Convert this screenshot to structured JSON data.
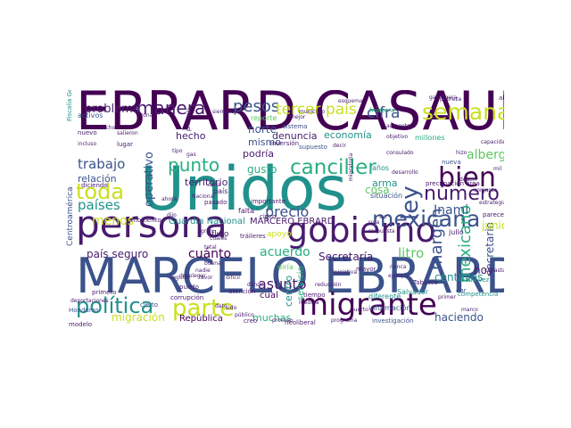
{
  "palette": {
    "dark": "#481b6d",
    "indigo": "#3b528b",
    "blue": "#2c728e",
    "teal": "#21918c",
    "green": "#28ae80",
    "lime": "#5ec962",
    "yellow": "#c8e020",
    "purple": "#440154"
  },
  "words": [
    {
      "id": "ebrard-casaubon",
      "text": "EBRARD CASAUBON",
      "color": "purple"
    },
    {
      "id": "unidos",
      "text": "Unidos",
      "color": "teal"
    },
    {
      "id": "marcelo-ebrard",
      "text": "MARCELO EBRARD",
      "color": "indigo"
    },
    {
      "id": "persona",
      "text": "persona",
      "color": "dark"
    },
    {
      "id": "gobierno",
      "text": "gobierno",
      "color": "dark"
    },
    {
      "id": "migrante",
      "text": "migrante",
      "color": "purple"
    },
    {
      "id": "canciller",
      "text": "canciller",
      "color": "green"
    },
    {
      "id": "bien",
      "text": "bien",
      "color": "purple"
    },
    {
      "id": "mexicana",
      "text": "mexicana",
      "color": "indigo"
    },
    {
      "id": "numero",
      "text": "número",
      "color": "dark"
    },
    {
      "id": "semana",
      "text": "semana",
      "color": "yellow"
    },
    {
      "id": "manera",
      "text": "manera",
      "color": "dark"
    },
    {
      "id": "pesos",
      "text": "pesos",
      "color": "indigo"
    },
    {
      "id": "tercer-pais",
      "text": "tercer país",
      "color": "yellow"
    },
    {
      "id": "cifra",
      "text": "cifra",
      "color": "indigo"
    },
    {
      "id": "punto",
      "text": "punto",
      "color": "green"
    },
    {
      "id": "toda",
      "text": "toda",
      "color": "yellow"
    },
    {
      "id": "politica",
      "text": "política",
      "color": "teal"
    },
    {
      "id": "parte",
      "text": "parte",
      "color": "yellow"
    },
    {
      "id": "problema",
      "text": "problema",
      "color": "dark"
    },
    {
      "id": "trabajo",
      "text": "trabajo",
      "color": "indigo"
    },
    {
      "id": "paises",
      "text": "países",
      "color": "teal"
    },
    {
      "id": "menos",
      "text": "menos",
      "color": "yellow"
    },
    {
      "id": "relacion",
      "text": "relación",
      "color": "indigo"
    },
    {
      "id": "operativo",
      "text": "operativo",
      "color": "indigo"
    },
    {
      "id": "territorio",
      "text": "territorio",
      "color": "dark"
    },
    {
      "id": "hecho",
      "text": "hecho",
      "color": "dark"
    },
    {
      "id": "norte",
      "text": "norte",
      "color": "indigo"
    },
    {
      "id": "mismo",
      "text": "mismo",
      "color": "indigo"
    },
    {
      "id": "podria",
      "text": "podría",
      "color": "dark"
    },
    {
      "id": "gusto",
      "text": "gusto",
      "color": "green"
    },
    {
      "id": "denuncia",
      "text": "denuncia",
      "color": "dark"
    },
    {
      "id": "economia",
      "text": "economía",
      "color": "teal"
    },
    {
      "id": "precio",
      "text": "precio",
      "color": "indigo"
    },
    {
      "id": "ley",
      "text": "ley",
      "color": "indigo"
    },
    {
      "id": "cosa",
      "text": "cosa",
      "color": "lime"
    },
    {
      "id": "cuanto",
      "text": "cuánto",
      "color": "purple"
    },
    {
      "id": "acuerdo",
      "text": "acuerdo",
      "color": "green"
    },
    {
      "id": "secretaria",
      "text": "Secretaría",
      "color": "dark"
    },
    {
      "id": "litro",
      "text": "litro",
      "color": "lime"
    },
    {
      "id": "marcero-ebrard",
      "text": "MARCERO EBRARD",
      "color": "dark"
    },
    {
      "id": "guardia-nacional",
      "text": "Guardia Nacional",
      "color": "teal"
    },
    {
      "id": "pais-seguro",
      "text": "país seguro",
      "color": "dark"
    },
    {
      "id": "asunto",
      "text": "asunto",
      "color": "dark"
    },
    {
      "id": "migracion",
      "text": "migración",
      "color": "yellow"
    },
    {
      "id": "muchas",
      "text": "muchas",
      "color": "green"
    },
    {
      "id": "republica",
      "text": "República",
      "color": "purple"
    },
    {
      "id": "haciendo",
      "text": "haciendo",
      "color": "indigo"
    },
    {
      "id": "margen",
      "text": "margen",
      "color": "indigo"
    },
    {
      "id": "mexicano",
      "text": "mexicano",
      "color": "green"
    },
    {
      "id": "secretario",
      "text": "secretario",
      "color": "indigo"
    },
    {
      "id": "centavos",
      "text": "centavos",
      "color": "teal"
    },
    {
      "id": "hoy",
      "text": "hoy",
      "color": "dark"
    },
    {
      "id": "albergue",
      "text": "albergue",
      "color": "lime"
    },
    {
      "id": "inami",
      "text": "Inami",
      "color": "indigo"
    },
    {
      "id": "junio",
      "text": "junio",
      "color": "yellow"
    },
    {
      "id": "arma",
      "text": "arma",
      "color": "teal"
    },
    {
      "id": "frontera",
      "text": "frontera",
      "color": "green"
    },
    {
      "id": "centroamerica",
      "text": "Centroamérica",
      "color": "indigo"
    },
    {
      "id": "fiscalia-general",
      "text": "Fiscalía General",
      "color": "teal"
    },
    {
      "id": "situacion",
      "text": "situación",
      "color": "indigo"
    },
    {
      "id": "diferente",
      "text": "diferente",
      "color": "teal"
    },
    {
      "id": "informacion",
      "text": "información",
      "color": "indigo"
    },
    {
      "id": "salvador",
      "text": "Salvador",
      "color": "teal"
    },
    {
      "id": "investigacion",
      "text": "investigación",
      "color": "indigo"
    },
    {
      "id": "momento",
      "text": "momento",
      "color": "dark"
    },
    {
      "id": "julio",
      "text": "julio",
      "color": "dark"
    },
    {
      "id": "nuevo",
      "text": "nuevo",
      "color": "dark"
    },
    {
      "id": "diria",
      "text": "diría",
      "color": "lime"
    },
    {
      "id": "servicio",
      "text": "servicio",
      "color": "green"
    },
    {
      "id": "centro",
      "text": "centro",
      "color": "teal"
    },
    {
      "id": "cual",
      "text": "cual",
      "color": "purple"
    },
    {
      "id": "apoyo",
      "text": "apoyo",
      "color": "yellow"
    },
    {
      "id": "flujo",
      "text": "flujo",
      "color": "dark"
    },
    {
      "id": "pasado",
      "text": "pasado",
      "color": "dark"
    },
    {
      "id": "falta",
      "text": "falta",
      "color": "dark"
    },
    {
      "id": "anos",
      "text": "años",
      "color": "teal"
    },
    {
      "id": "precupacion-area",
      "text": "precupación área",
      "color": "dark"
    },
    {
      "id": "millones",
      "text": "millones",
      "color": "green"
    },
    {
      "id": "alto",
      "text": "alto",
      "color": "dark"
    },
    {
      "id": "activos",
      "text": "activos",
      "color": "indigo"
    },
    {
      "id": "reporte",
      "text": "reporte",
      "color": "lime"
    },
    {
      "id": "sistema",
      "text": "sistema",
      "color": "indigo"
    },
    {
      "id": "inversion",
      "text": "inversión",
      "color": "dark"
    },
    {
      "id": "supuesto",
      "text": "supuesto",
      "color": "indigo"
    },
    {
      "id": "tiempo",
      "text": "tiempo",
      "color": "dark"
    },
    {
      "id": "corrupcion",
      "text": "corrupción",
      "color": "dark"
    },
    {
      "id": "atencion",
      "text": "atención",
      "color": "dark"
    },
    {
      "id": "trailers",
      "text": "tráileres",
      "color": "dark"
    },
    {
      "id": "neoliberal",
      "text": "neoliberal",
      "color": "dark"
    },
    {
      "id": "competencia",
      "text": "competencia",
      "color": "teal"
    },
    {
      "id": "primero",
      "text": "primero",
      "color": "dark"
    },
    {
      "id": "cada-vez",
      "text": "cada vez",
      "color": "teal"
    },
    {
      "id": "honduras",
      "text": "Honduras",
      "color": "indigo"
    },
    {
      "id": "modelo",
      "text": "modelo",
      "color": "dark"
    },
    {
      "id": "importante",
      "text": "importante",
      "color": "dark"
    },
    {
      "id": "cierto",
      "text": "cierto",
      "color": "indigo"
    },
    {
      "id": "mayor",
      "text": "mayor",
      "color": "dark"
    },
    {
      "id": "tabasco",
      "text": "Tabasco",
      "color": "dark"
    },
    {
      "id": "pais",
      "text": "país",
      "color": "dark"
    },
    {
      "id": "dar",
      "text": "dar",
      "color": "indigo"
    },
    {
      "id": "parece",
      "text": "parece",
      "color": "dark"
    },
    {
      "id": "nueva",
      "text": "nueva",
      "color": "indigo"
    },
    {
      "id": "creo",
      "text": "creo",
      "color": "dark"
    },
    {
      "id": "puedo",
      "text": "puedo",
      "color": "dark"
    },
    {
      "id": "lugar",
      "text": "lugar",
      "color": "dark"
    },
    {
      "id": "cinco",
      "text": "cinco",
      "color": "dark"
    },
    {
      "id": "municipio",
      "text": "municipio",
      "color": "dark"
    },
    {
      "id": "siempre",
      "text": "siempre",
      "color": "dark"
    },
    {
      "id": "medida",
      "text": "medida",
      "color": "dark"
    },
    {
      "id": "diciendo",
      "text": "diciendo",
      "color": "dark"
    },
    {
      "id": "tipo",
      "text": "tipo",
      "color": "dark"
    },
    {
      "id": "incluso",
      "text": "incluso",
      "color": "dark"
    },
    {
      "id": "dicho",
      "text": "dicho",
      "color": "dark"
    },
    {
      "id": "respuesta",
      "text": "respuesta",
      "color": "dark"
    },
    {
      "id": "esquema",
      "text": "esquema",
      "color": "dark"
    },
    {
      "id": "reduccion",
      "text": "reducción",
      "color": "dark"
    },
    {
      "id": "proceso",
      "text": "proceso",
      "color": "dark"
    },
    {
      "id": "programa",
      "text": "programa",
      "color": "dark"
    },
    {
      "id": "nadie",
      "text": "nadie",
      "color": "dark"
    },
    {
      "id": "buena",
      "text": "buena",
      "color": "dark"
    },
    {
      "id": "favor",
      "text": "favor",
      "color": "dark"
    },
    {
      "id": "dificil",
      "text": "difícil",
      "color": "dark"
    },
    {
      "id": "donde",
      "text": "dónde",
      "color": "dark"
    },
    {
      "id": "cuales",
      "text": "cuáles",
      "color": "dark"
    },
    {
      "id": "total",
      "text": "total",
      "color": "dark"
    },
    {
      "id": "nacional",
      "text": "Nacional",
      "color": "dark"
    },
    {
      "id": "publico",
      "text": "público",
      "color": "dark"
    },
    {
      "id": "regular",
      "text": "regular",
      "color": "dark"
    },
    {
      "id": "cada",
      "text": "cada",
      "color": "dark"
    },
    {
      "id": "dijo",
      "text": "dijo",
      "color": "dark"
    },
    {
      "id": "gran",
      "text": "gran",
      "color": "dark"
    },
    {
      "id": "mejor",
      "text": "mejor",
      "color": "dark"
    },
    {
      "id": "salieron",
      "text": "salieron",
      "color": "dark"
    },
    {
      "id": "deben",
      "text": "deben",
      "color": "dark"
    },
    {
      "id": "hizo",
      "text": "hizo",
      "color": "dark"
    },
    {
      "id": "deportaciones",
      "text": "deportaciones",
      "color": "dark"
    },
    {
      "id": "principio",
      "text": "principio",
      "color": "dark"
    },
    {
      "id": "gasolinera",
      "text": "gasolinera",
      "color": "dark"
    },
    {
      "id": "nunca",
      "text": "nunca",
      "color": "dark"
    },
    {
      "id": "ejemplo",
      "text": "ejemplo",
      "color": "dark"
    },
    {
      "id": "gas",
      "text": "gas",
      "color": "dark"
    },
    {
      "id": "decir",
      "text": "decir",
      "color": "dark"
    },
    {
      "id": "desplegar",
      "text": "desplegar",
      "color": "dark"
    },
    {
      "id": "consulado",
      "text": "consulado",
      "color": "dark"
    },
    {
      "id": "mil",
      "text": "mil",
      "color": "dark"
    },
    {
      "id": "capacidad",
      "text": "capacidad",
      "color": "dark"
    },
    {
      "id": "primer",
      "text": "primer",
      "color": "dark"
    },
    {
      "id": "desarrollo",
      "text": "desarrollo",
      "color": "dark"
    },
    {
      "id": "migratoria",
      "text": "migratoria",
      "color": "dark"
    },
    {
      "id": "objetivo",
      "text": "objetivo",
      "color": "dark"
    },
    {
      "id": "ahora",
      "text": "ahora",
      "color": "dark"
    },
    {
      "id": "estrategia",
      "text": "estrategia",
      "color": "dark"
    },
    {
      "id": "zona",
      "text": "zona",
      "color": "dark"
    },
    {
      "id": "conjunto",
      "text": "conjunto",
      "color": "dark"
    },
    {
      "id": "pobreza",
      "text": "pobreza",
      "color": "dark"
    },
    {
      "id": "ruta",
      "text": "ruta",
      "color": "dark"
    },
    {
      "id": "sur",
      "text": "sur",
      "color": "dark"
    },
    {
      "id": "dato",
      "text": "dato",
      "color": "dark"
    },
    {
      "id": "sido",
      "text": "sido",
      "color": "dark"
    },
    {
      "id": "iniciativa",
      "text": "iniciativa",
      "color": "dark"
    },
    {
      "id": "puerto",
      "text": "puerto",
      "color": "dark"
    },
    {
      "id": "canasta",
      "text": "canasta",
      "color": "dark"
    },
    {
      "id": "marco",
      "text": "marco",
      "color": "dark"
    },
    {
      "id": "aumento",
      "text": "aumento",
      "color": "dark"
    }
  ]
}
